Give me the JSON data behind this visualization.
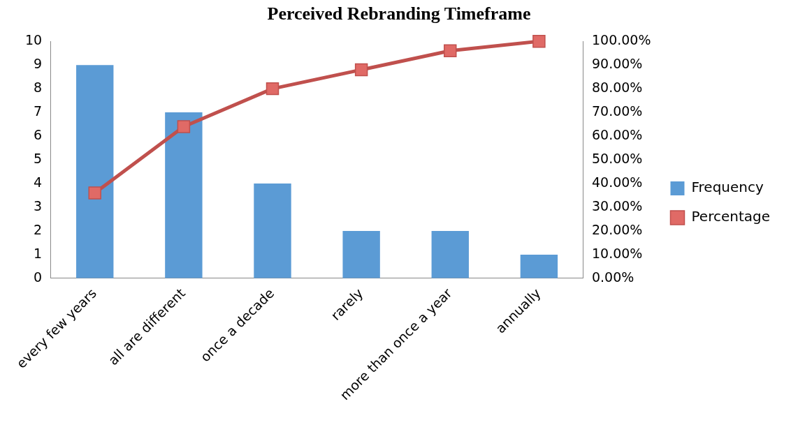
{
  "chart_data": {
    "type": "bar",
    "title": "Perceived Rebranding Timeframe",
    "categories": [
      "every few years",
      "all are different",
      "once a decade",
      "rarely",
      "more than once a year",
      "annually"
    ],
    "series": [
      {
        "name": "Frequency",
        "color": "#5b9bd5",
        "values": [
          9,
          7,
          4,
          2,
          2,
          1
        ]
      },
      {
        "name": "Percentage",
        "type": "line",
        "axis": "y2",
        "color": "#c0504d",
        "marker": "square",
        "values": [
          36,
          64,
          80,
          88,
          96,
          100
        ]
      }
    ],
    "ylim": [
      0,
      10
    ],
    "yticks": [
      0,
      1,
      2,
      3,
      4,
      5,
      6,
      7,
      8,
      9,
      10
    ],
    "y2lim": [
      0,
      100
    ],
    "y2ticks": [
      {
        "value": 0,
        "label": "0.00%"
      },
      {
        "value": 10,
        "label": "10.00%"
      },
      {
        "value": 20,
        "label": "20.00%"
      },
      {
        "value": 30,
        "label": "30.00%"
      },
      {
        "value": 40,
        "label": "40.00%"
      },
      {
        "value": 50,
        "label": "50.00%"
      },
      {
        "value": 60,
        "label": "60.00%"
      },
      {
        "value": 70,
        "label": "70.00%"
      },
      {
        "value": 80,
        "label": "80.00%"
      },
      {
        "value": 90,
        "label": "90.00%"
      },
      {
        "value": 100,
        "label": "100.00%"
      }
    ],
    "grid": false,
    "legend": "right"
  }
}
